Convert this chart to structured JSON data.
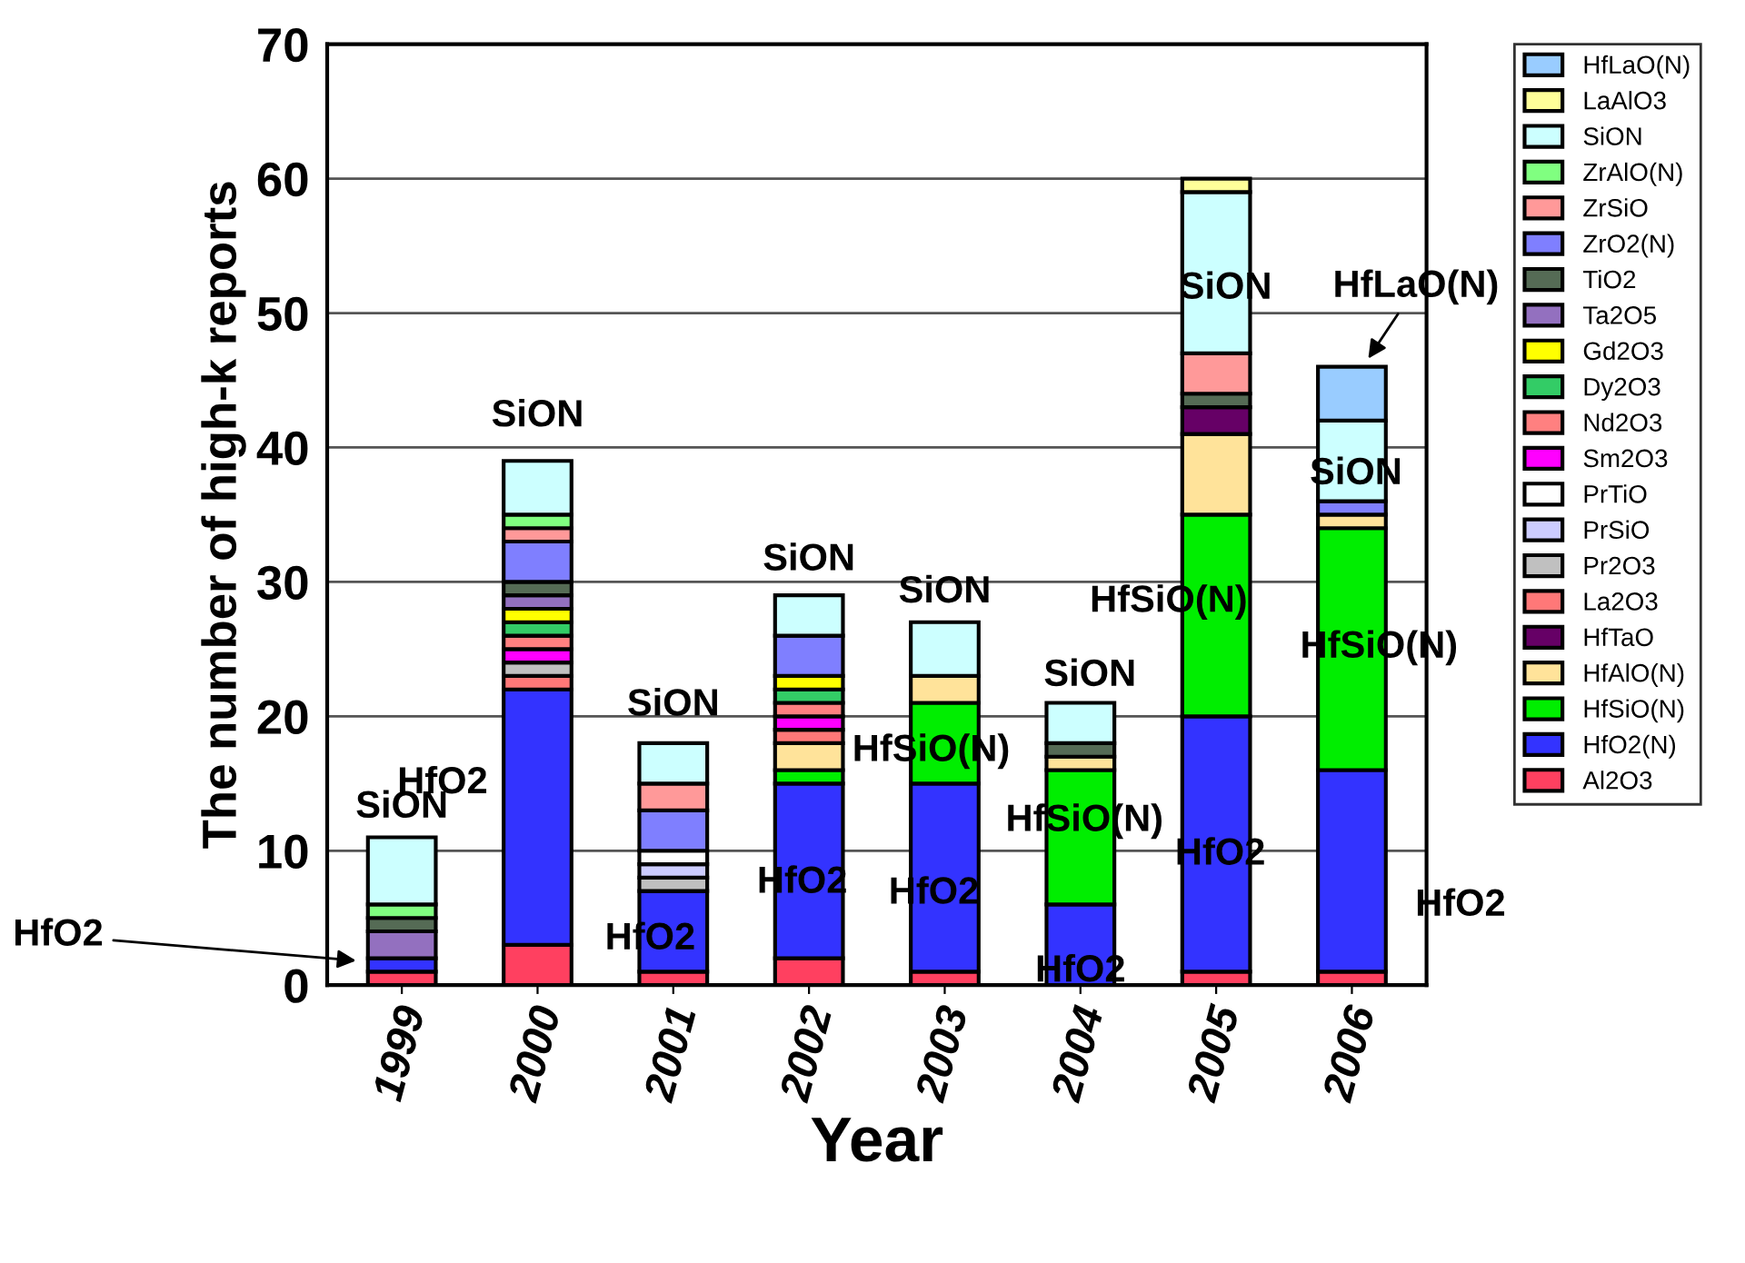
{
  "chart_data": {
    "type": "bar",
    "stacked": true,
    "xlabel": "Year",
    "ylabel": "The number of high-k reports",
    "categories": [
      "1999",
      "2000",
      "2001",
      "2002",
      "2003",
      "2004",
      "2005",
      "2006"
    ],
    "ylim": [
      0,
      70
    ],
    "yticks": [
      0,
      10,
      20,
      30,
      40,
      50,
      60,
      70
    ],
    "grid": "y",
    "legend": "right",
    "series": [
      {
        "name": "Al2O3",
        "color": "#ff4060",
        "values": [
          1,
          3,
          1,
          2,
          1,
          null,
          1,
          1
        ]
      },
      {
        "name": "HfO2(N)",
        "color": "#3333ff",
        "values": [
          1,
          19,
          6,
          13,
          14,
          6,
          19,
          15
        ]
      },
      {
        "name": "HfSiO(N)",
        "color": "#00ee00",
        "values": [
          null,
          null,
          null,
          1,
          6,
          10,
          15,
          18
        ]
      },
      {
        "name": "HfAlO(N)",
        "color": "#ffe39a",
        "values": [
          null,
          null,
          null,
          2,
          2,
          1,
          6,
          1
        ]
      },
      {
        "name": "HfTaO",
        "color": "#660066",
        "values": [
          null,
          null,
          null,
          null,
          null,
          null,
          2,
          null
        ]
      },
      {
        "name": "La2O3",
        "color": "#ff7878",
        "values": [
          null,
          1,
          null,
          1,
          null,
          null,
          null,
          null
        ]
      },
      {
        "name": "Pr2O3",
        "color": "#c0c0c0",
        "values": [
          null,
          1,
          1,
          null,
          null,
          null,
          null,
          null
        ]
      },
      {
        "name": "PrSiO",
        "color": "#ccccff",
        "values": [
          null,
          null,
          1,
          null,
          null,
          null,
          null,
          null
        ]
      },
      {
        "name": "PrTiO",
        "color": "#ffffff",
        "values": [
          null,
          null,
          1,
          null,
          null,
          null,
          null,
          null
        ]
      },
      {
        "name": "Sm2O3",
        "color": "#ff00ff",
        "values": [
          null,
          1,
          null,
          1,
          null,
          null,
          null,
          null
        ]
      },
      {
        "name": "Nd2O3",
        "color": "#ff8080",
        "values": [
          null,
          1,
          null,
          1,
          null,
          null,
          null,
          null
        ]
      },
      {
        "name": "Dy2O3",
        "color": "#33cc66",
        "values": [
          null,
          1,
          null,
          1,
          null,
          null,
          null,
          null
        ]
      },
      {
        "name": "Gd2O3",
        "color": "#ffff00",
        "values": [
          null,
          1,
          null,
          1,
          null,
          null,
          null,
          null
        ]
      },
      {
        "name": "Ta2O5",
        "color": "#9370bf",
        "values": [
          2,
          1,
          null,
          null,
          null,
          null,
          null,
          null
        ]
      },
      {
        "name": "TiO2",
        "color": "#556b55",
        "values": [
          1,
          1,
          null,
          null,
          null,
          1,
          1,
          null
        ]
      },
      {
        "name": "ZrO2(N)",
        "color": "#7f7fff",
        "values": [
          null,
          3,
          3,
          3,
          null,
          null,
          null,
          1
        ]
      },
      {
        "name": "ZrSiO",
        "color": "#ff9999",
        "values": [
          null,
          1,
          2,
          null,
          null,
          null,
          3,
          null
        ]
      },
      {
        "name": "ZrAlO(N)",
        "color": "#80ff80",
        "values": [
          1,
          1,
          null,
          null,
          null,
          null,
          null,
          null
        ]
      },
      {
        "name": "SiON",
        "color": "#ccffff",
        "values": [
          5,
          4,
          3,
          3,
          4,
          3,
          12,
          6
        ]
      },
      {
        "name": "LaAlO3",
        "color": "#ffff99",
        "values": [
          null,
          null,
          null,
          null,
          null,
          null,
          1,
          null
        ]
      },
      {
        "name": "HfLaO(N)",
        "color": "#99ccff",
        "values": [
          null,
          null,
          null,
          null,
          null,
          null,
          null,
          4
        ]
      }
    ],
    "annotations": [
      "SiON",
      "HfO2",
      "SiON",
      "HfO2",
      "SiON",
      "HfO2",
      "SiON",
      "HfO2",
      "SiON",
      "HfSiO(N)",
      "HfO2",
      "SiON",
      "HfSiO(N)",
      "HfO2",
      "SiON",
      "HfSiO(N)",
      "HfO2",
      {
        "text": "HfLaO(N)",
        "x": "2006",
        "y": 46
      },
      "SiON",
      "HfSiO(N)",
      "HfO2"
    ]
  }
}
